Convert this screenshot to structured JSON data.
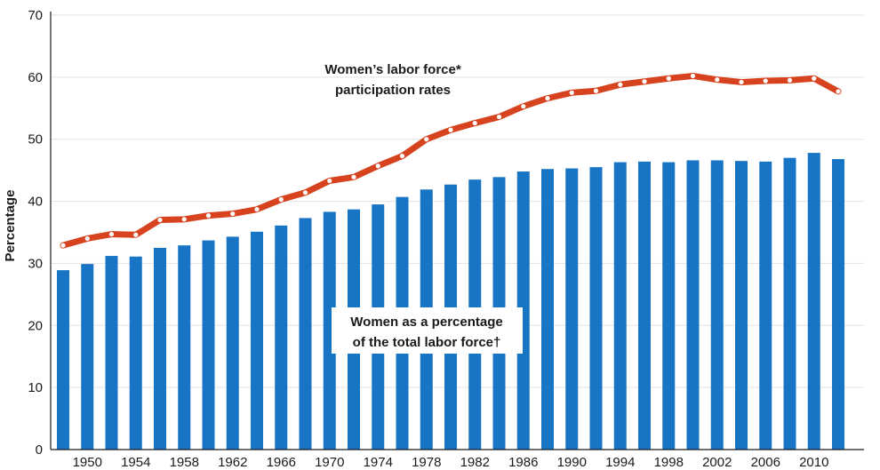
{
  "chart_data": {
    "type": "bar",
    "ylabel": "Percentage",
    "xlabel": "",
    "title": "",
    "ylim": [
      0,
      70
    ],
    "yticks": [
      0,
      10,
      20,
      30,
      40,
      50,
      60,
      70
    ],
    "x": [
      1948,
      1950,
      1952,
      1954,
      1956,
      1958,
      1960,
      1962,
      1964,
      1966,
      1968,
      1970,
      1972,
      1974,
      1976,
      1978,
      1980,
      1982,
      1984,
      1986,
      1988,
      1990,
      1992,
      1994,
      1996,
      1998,
      2000,
      2002,
      2004,
      2006,
      2008,
      2010,
      2012
    ],
    "xtick_labels": [
      "1950",
      "1954",
      "1958",
      "1962",
      "1966",
      "1970",
      "1974",
      "1978",
      "1982",
      "1986",
      "1990",
      "1994",
      "1998",
      "2002",
      "2006",
      "2010"
    ],
    "series": [
      {
        "name": "Women as a percentage of the total labor force†",
        "type": "bar",
        "color": "#1874c4",
        "values": [
          28.9,
          29.9,
          31.2,
          31.1,
          32.5,
          32.9,
          33.7,
          34.3,
          35.1,
          36.1,
          37.3,
          38.3,
          38.7,
          39.5,
          40.7,
          41.9,
          42.7,
          43.5,
          43.9,
          44.8,
          45.2,
          45.3,
          45.5,
          46.3,
          46.4,
          46.3,
          46.6,
          46.6,
          46.5,
          46.4,
          47.0,
          47.8,
          46.8
        ]
      },
      {
        "name": "Women’s labor force* participation rates",
        "type": "line",
        "color": "#d8431f",
        "values": [
          32.9,
          34.0,
          34.7,
          34.6,
          37.0,
          37.1,
          37.7,
          38.0,
          38.7,
          40.3,
          41.4,
          43.3,
          43.9,
          45.7,
          47.3,
          50.0,
          51.5,
          52.6,
          53.6,
          55.3,
          56.6,
          57.5,
          57.8,
          58.8,
          59.3,
          59.8,
          60.2,
          59.6,
          59.2,
          59.4,
          59.5,
          59.8,
          57.7
        ]
      }
    ]
  }
}
